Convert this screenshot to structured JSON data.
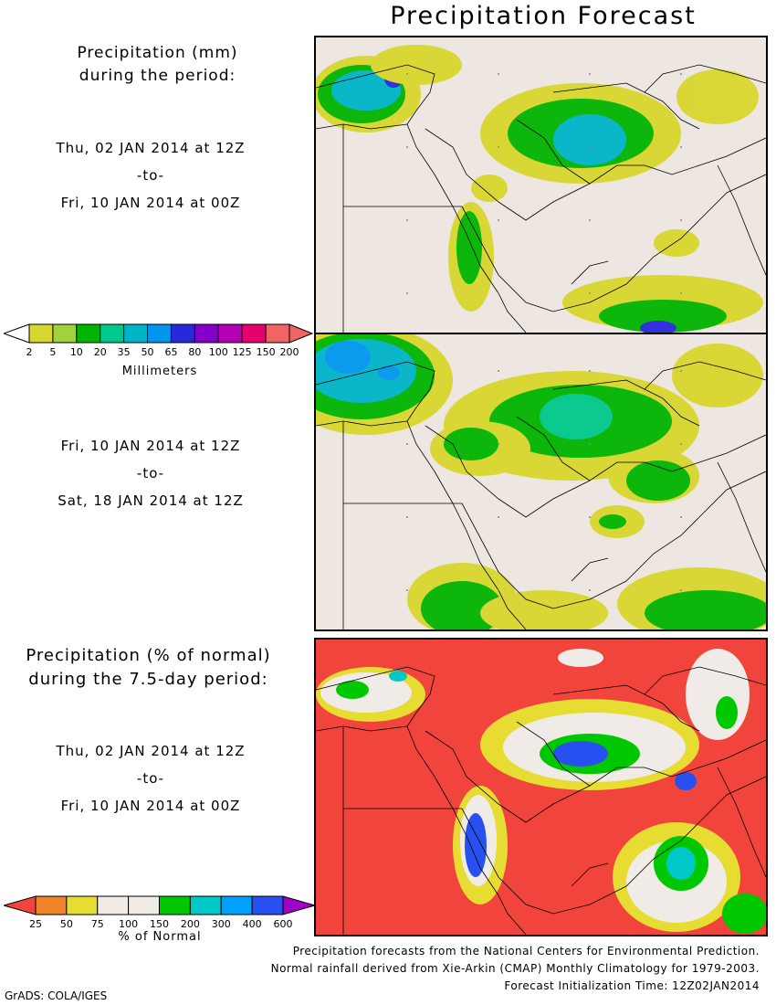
{
  "title": "Precipitation Forecast",
  "panel1": {
    "heading_line1": "Precipitation (mm)",
    "heading_line2": "during the period:",
    "start": "Thu, 02 JAN 2014 at 12Z",
    "sep": "-to-",
    "end": "Fri, 10 JAN 2014 at 00Z"
  },
  "panel2": {
    "start": "Fri, 10 JAN 2014 at 12Z",
    "sep": "-to-",
    "end": "Sat, 18 JAN 2014 at 12Z"
  },
  "panel3": {
    "heading_line1": "Precipitation (% of normal)",
    "heading_line2": "during the 7.5-day period:",
    "start": "Thu, 02 JAN 2014 at 12Z",
    "sep": "-to-",
    "end": "Fri, 10 JAN 2014 at 00Z"
  },
  "legend_mm": {
    "title": "Millimeters",
    "labels": [
      "2",
      "5",
      "10",
      "20",
      "35",
      "50",
      "65",
      "80",
      "100",
      "125",
      "150",
      "200"
    ],
    "colors": [
      "#d7d72d",
      "#a0d23c",
      "#00b400",
      "#00c88c",
      "#00b4c8",
      "#0096f0",
      "#2828dc",
      "#8200c8",
      "#b400b4",
      "#e6006e",
      "#f06464",
      "#f06464"
    ],
    "low_color": "#ffffff"
  },
  "legend_pct": {
    "title": "% of Normal",
    "labels": [
      "25",
      "50",
      "75",
      "100",
      "150",
      "200",
      "300",
      "400",
      "600"
    ],
    "colors": [
      "#f0443c",
      "#f08228",
      "#e6dc32",
      "#f0ebe6",
      "#f0ebe6",
      "#00c800",
      "#00c8c8",
      "#00a0ff",
      "#2850f0",
      "#a000c8"
    ]
  },
  "footer": {
    "line1": "Precipitation forecasts from the National Centers for Environmental Prediction.",
    "line2": "Normal rainfall derived from Xie-Arkin (CMAP) Monthly Climatology for 1979-2003.",
    "line3": "Forecast Initialization Time: 12Z02JAN2014"
  },
  "credit": "GrADS: COLA/IGES",
  "colors": {
    "land": "#eee6e0",
    "below_normal": "#f0443c"
  }
}
